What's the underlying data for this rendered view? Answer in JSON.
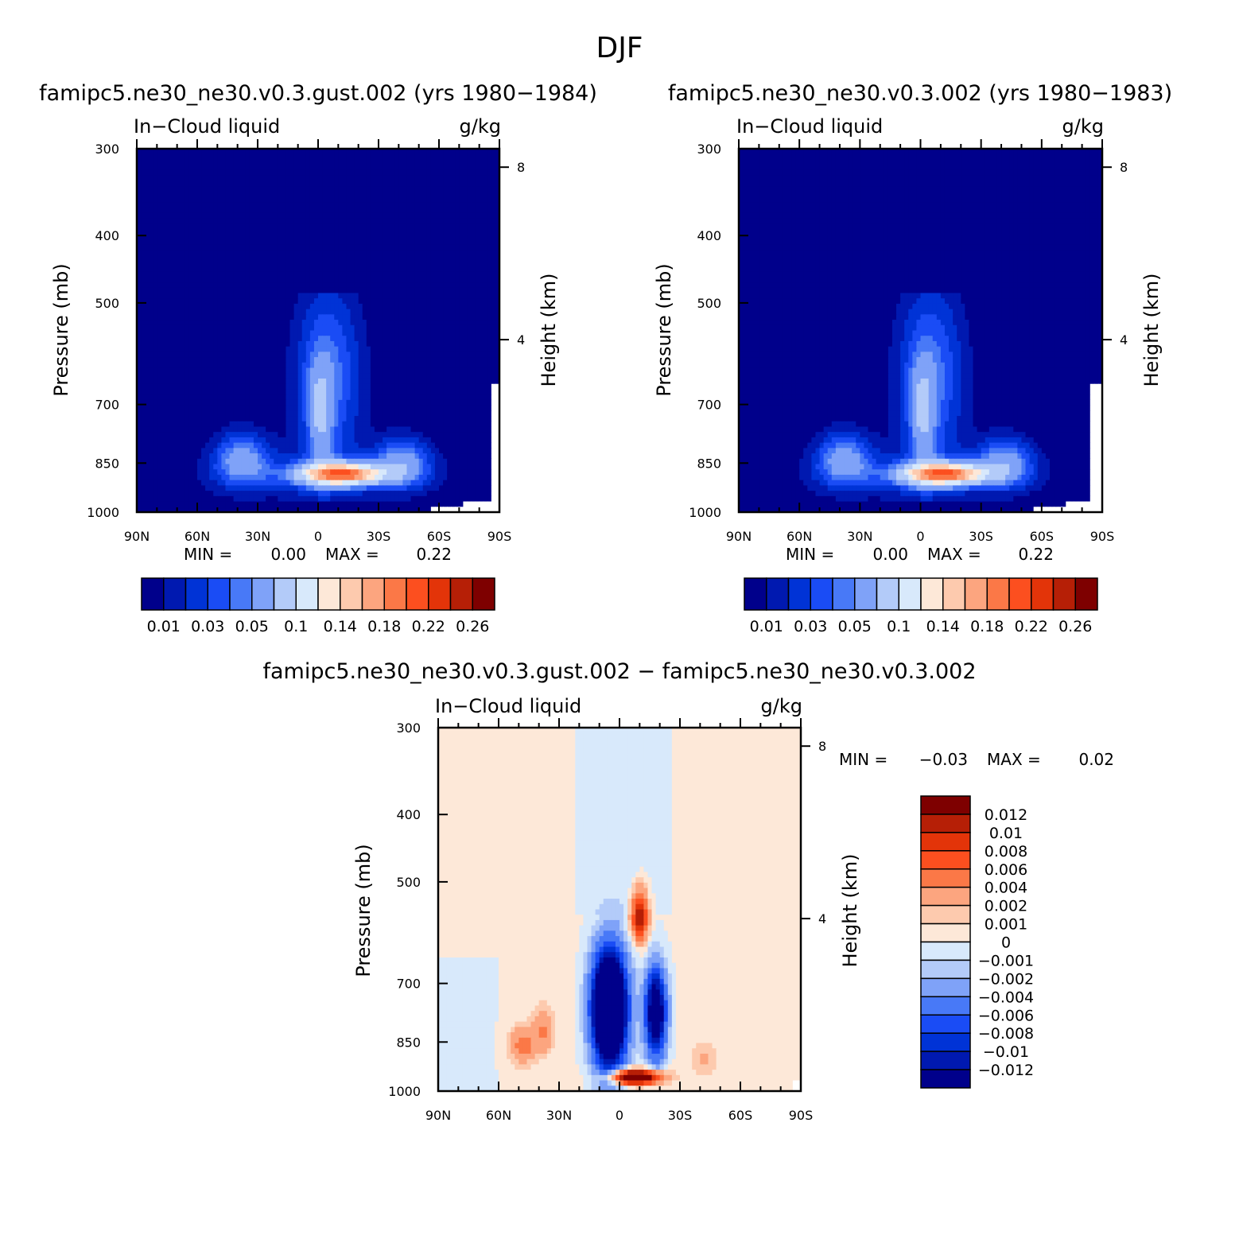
{
  "figure": {
    "title": "DJF"
  },
  "palette": {
    "abs": [
      "#00008b",
      "#0019b0",
      "#0033d6",
      "#1a4cf5",
      "#4879f7",
      "#7fa2f8",
      "#b3cbf9",
      "#d8e9fb",
      "#fde8d8",
      "#fdcaae",
      "#fca57f",
      "#fb7847",
      "#fc4f1f",
      "#e33409",
      "#b61f06",
      "#7e0000"
    ],
    "diff": [
      "#00008b",
      "#0019b0",
      "#0033d6",
      "#1a4cf5",
      "#4879f7",
      "#7fa2f8",
      "#b3cbf9",
      "#d8e9fb",
      "#fde8d8",
      "#fdcaae",
      "#fca57f",
      "#fb7847",
      "#fc4f1f",
      "#e33409",
      "#b61f06",
      "#7e0000"
    ],
    "missing": "#ffffff"
  },
  "chart_data": [
    {
      "id": "panel_a",
      "type": "contour",
      "title": "famipc5.ne30_ne30.v0.3.gust.002 (yrs 1980−1984)",
      "left_label": "In−Cloud liquid",
      "right_label": "g/kg",
      "ylabel": "Pressure (mb)",
      "y2label": "Height (km)",
      "x_ticks": [
        "90N",
        "60N",
        "30N",
        "0",
        "30S",
        "60S",
        "90S"
      ],
      "x_tick_values": [
        90,
        60,
        30,
        0,
        -30,
        -60,
        -90
      ],
      "xlim": [
        90,
        -90
      ],
      "y_ticks": [
        300,
        400,
        500,
        700,
        850,
        1000
      ],
      "ylim": [
        300,
        1000
      ],
      "y_scale": "log",
      "y2_ticks": [
        "8",
        "4"
      ],
      "y2_tick_values": [
        8,
        4
      ],
      "stats": {
        "min_label": "MIN =",
        "min": "0.00",
        "max_label": "MAX =",
        "max": "0.22"
      },
      "colorbar": {
        "orientation": "horizontal",
        "labels": [
          "0.01",
          "0.03",
          "0.05",
          "0.1",
          "0.14",
          "0.18",
          "0.22",
          "0.26"
        ]
      },
      "levels": [
        0.01,
        0.02,
        0.03,
        0.04,
        0.05,
        0.07,
        0.1,
        0.12,
        0.14,
        0.16,
        0.18,
        0.2,
        0.22,
        0.24,
        0.26
      ],
      "field": {
        "kind": "absolute",
        "peak_value": 0.22,
        "peak_lat": -15,
        "peak_p": 880
      }
    },
    {
      "id": "panel_b",
      "type": "contour",
      "title": "famipc5.ne30_ne30.v0.3.002 (yrs 1980−1983)",
      "left_label": "In−Cloud liquid",
      "right_label": "g/kg",
      "ylabel": "Pressure (mb)",
      "y2label": "Height (km)",
      "x_ticks": [
        "90N",
        "60N",
        "30N",
        "0",
        "30S",
        "60S",
        "90S"
      ],
      "x_tick_values": [
        90,
        60,
        30,
        0,
        -30,
        -60,
        -90
      ],
      "xlim": [
        90,
        -90
      ],
      "y_ticks": [
        300,
        400,
        500,
        700,
        850,
        1000
      ],
      "ylim": [
        300,
        1000
      ],
      "y_scale": "log",
      "y2_ticks": [
        "8",
        "4"
      ],
      "y2_tick_values": [
        8,
        4
      ],
      "stats": {
        "min_label": "MIN =",
        "min": "0.00",
        "max_label": "MAX =",
        "max": "0.22"
      },
      "colorbar": {
        "orientation": "horizontal",
        "labels": [
          "0.01",
          "0.03",
          "0.05",
          "0.1",
          "0.14",
          "0.18",
          "0.22",
          "0.26"
        ]
      },
      "levels": [
        0.01,
        0.02,
        0.03,
        0.04,
        0.05,
        0.07,
        0.1,
        0.12,
        0.14,
        0.16,
        0.18,
        0.2,
        0.22,
        0.24,
        0.26
      ],
      "field": {
        "kind": "absolute",
        "peak_value": 0.22,
        "peak_lat": -15,
        "peak_p": 880
      }
    },
    {
      "id": "panel_c",
      "type": "contour",
      "title": "famipc5.ne30_ne30.v0.3.gust.002 − famipc5.ne30_ne30.v0.3.002",
      "left_label": "In−Cloud liquid",
      "right_label": "g/kg",
      "ylabel": "Pressure (mb)",
      "y2label": "Height (km)",
      "x_ticks": [
        "90N",
        "60N",
        "30N",
        "0",
        "30S",
        "60S",
        "90S"
      ],
      "x_tick_values": [
        90,
        60,
        30,
        0,
        -30,
        -60,
        -90
      ],
      "xlim": [
        90,
        -90
      ],
      "y_ticks": [
        300,
        400,
        500,
        700,
        850,
        1000
      ],
      "ylim": [
        300,
        1000
      ],
      "y_scale": "log",
      "y2_ticks": [
        "8",
        "4"
      ],
      "y2_tick_values": [
        8,
        4
      ],
      "stats": {
        "min_label": "MIN =",
        "min": "−0.03",
        "max_label": "MAX =",
        "max": "0.02"
      },
      "colorbar": {
        "orientation": "vertical",
        "labels": [
          "0.012",
          "0.01",
          "0.008",
          "0.006",
          "0.004",
          "0.002",
          "0.001",
          "0",
          "−0.001",
          "−0.002",
          "−0.004",
          "−0.006",
          "−0.008",
          "−0.01",
          "−0.012"
        ]
      },
      "levels": [
        -0.012,
        -0.01,
        -0.008,
        -0.006,
        -0.004,
        -0.002,
        -0.001,
        0,
        0.001,
        0.002,
        0.004,
        0.006,
        0.008,
        0.01,
        0.012
      ],
      "field": {
        "kind": "difference",
        "min": -0.03,
        "max": 0.02
      }
    }
  ]
}
